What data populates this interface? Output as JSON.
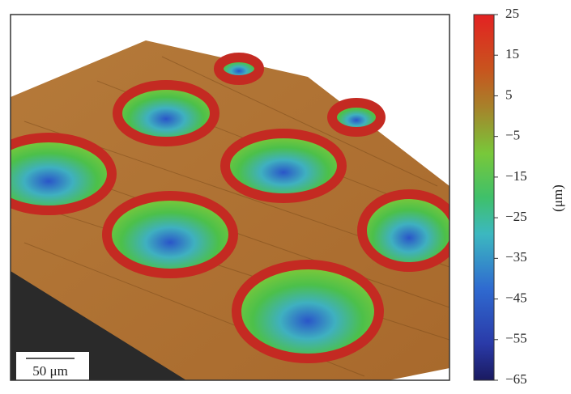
{
  "colorbar": {
    "lim": [
      -65,
      25
    ],
    "ticks": [
      25,
      15,
      5,
      {
        "value": -5,
        "label": "−5"
      },
      {
        "value": -15,
        "label": "−15"
      },
      {
        "value": -25,
        "label": "−25"
      },
      {
        "value": -35,
        "label": "−35"
      },
      {
        "value": -45,
        "label": "−45"
      },
      {
        "value": -55,
        "label": "−55"
      },
      {
        "value": -65,
        "label": "−65"
      }
    ],
    "label": "(μm)"
  },
  "scale_bar": {
    "label": "50 μm"
  }
}
